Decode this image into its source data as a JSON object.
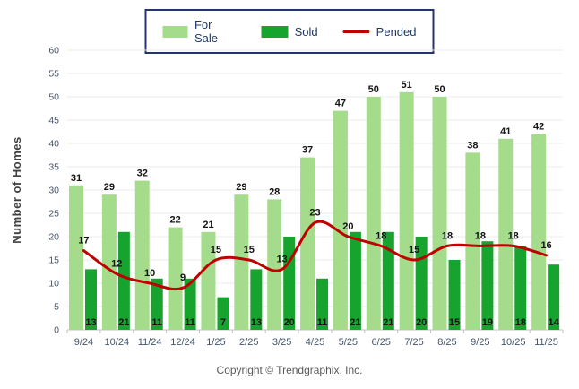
{
  "legend": {
    "items": [
      {
        "label": "For Sale",
        "type": "swatch",
        "color": "#A4DC8C"
      },
      {
        "label": "Sold",
        "type": "swatch",
        "color": "#17A42E"
      },
      {
        "label": "Pended",
        "type": "line",
        "color": "#C00000"
      }
    ]
  },
  "y_axis_title": "Number of Homes",
  "copyright": "Copyright © Trendgraphix, Inc.",
  "chart_data": {
    "type": "bar",
    "categories": [
      "9/24",
      "10/24",
      "11/24",
      "12/24",
      "1/25",
      "2/25",
      "3/25",
      "4/25",
      "5/25",
      "6/25",
      "7/25",
      "8/25",
      "9/25",
      "10/25",
      "11/25"
    ],
    "series": [
      {
        "name": "For Sale",
        "type": "bar",
        "color": "#A4DC8C",
        "values": [
          31,
          29,
          32,
          22,
          21,
          29,
          28,
          37,
          47,
          50,
          51,
          50,
          38,
          41,
          42
        ]
      },
      {
        "name": "Sold",
        "type": "bar",
        "color": "#17A42E",
        "values": [
          13,
          21,
          11,
          11,
          7,
          13,
          20,
          11,
          21,
          21,
          20,
          15,
          19,
          18,
          14
        ]
      },
      {
        "name": "Pended",
        "type": "line",
        "color": "#C00000",
        "values": [
          17,
          12,
          10,
          9,
          15,
          15,
          13,
          23,
          20,
          18,
          15,
          18,
          18,
          18,
          16
        ]
      }
    ],
    "xlabel": "",
    "ylabel": "Number of Homes",
    "ylim": [
      0,
      60
    ],
    "ytick_step": 5,
    "grid": true,
    "legend_position": "top"
  }
}
